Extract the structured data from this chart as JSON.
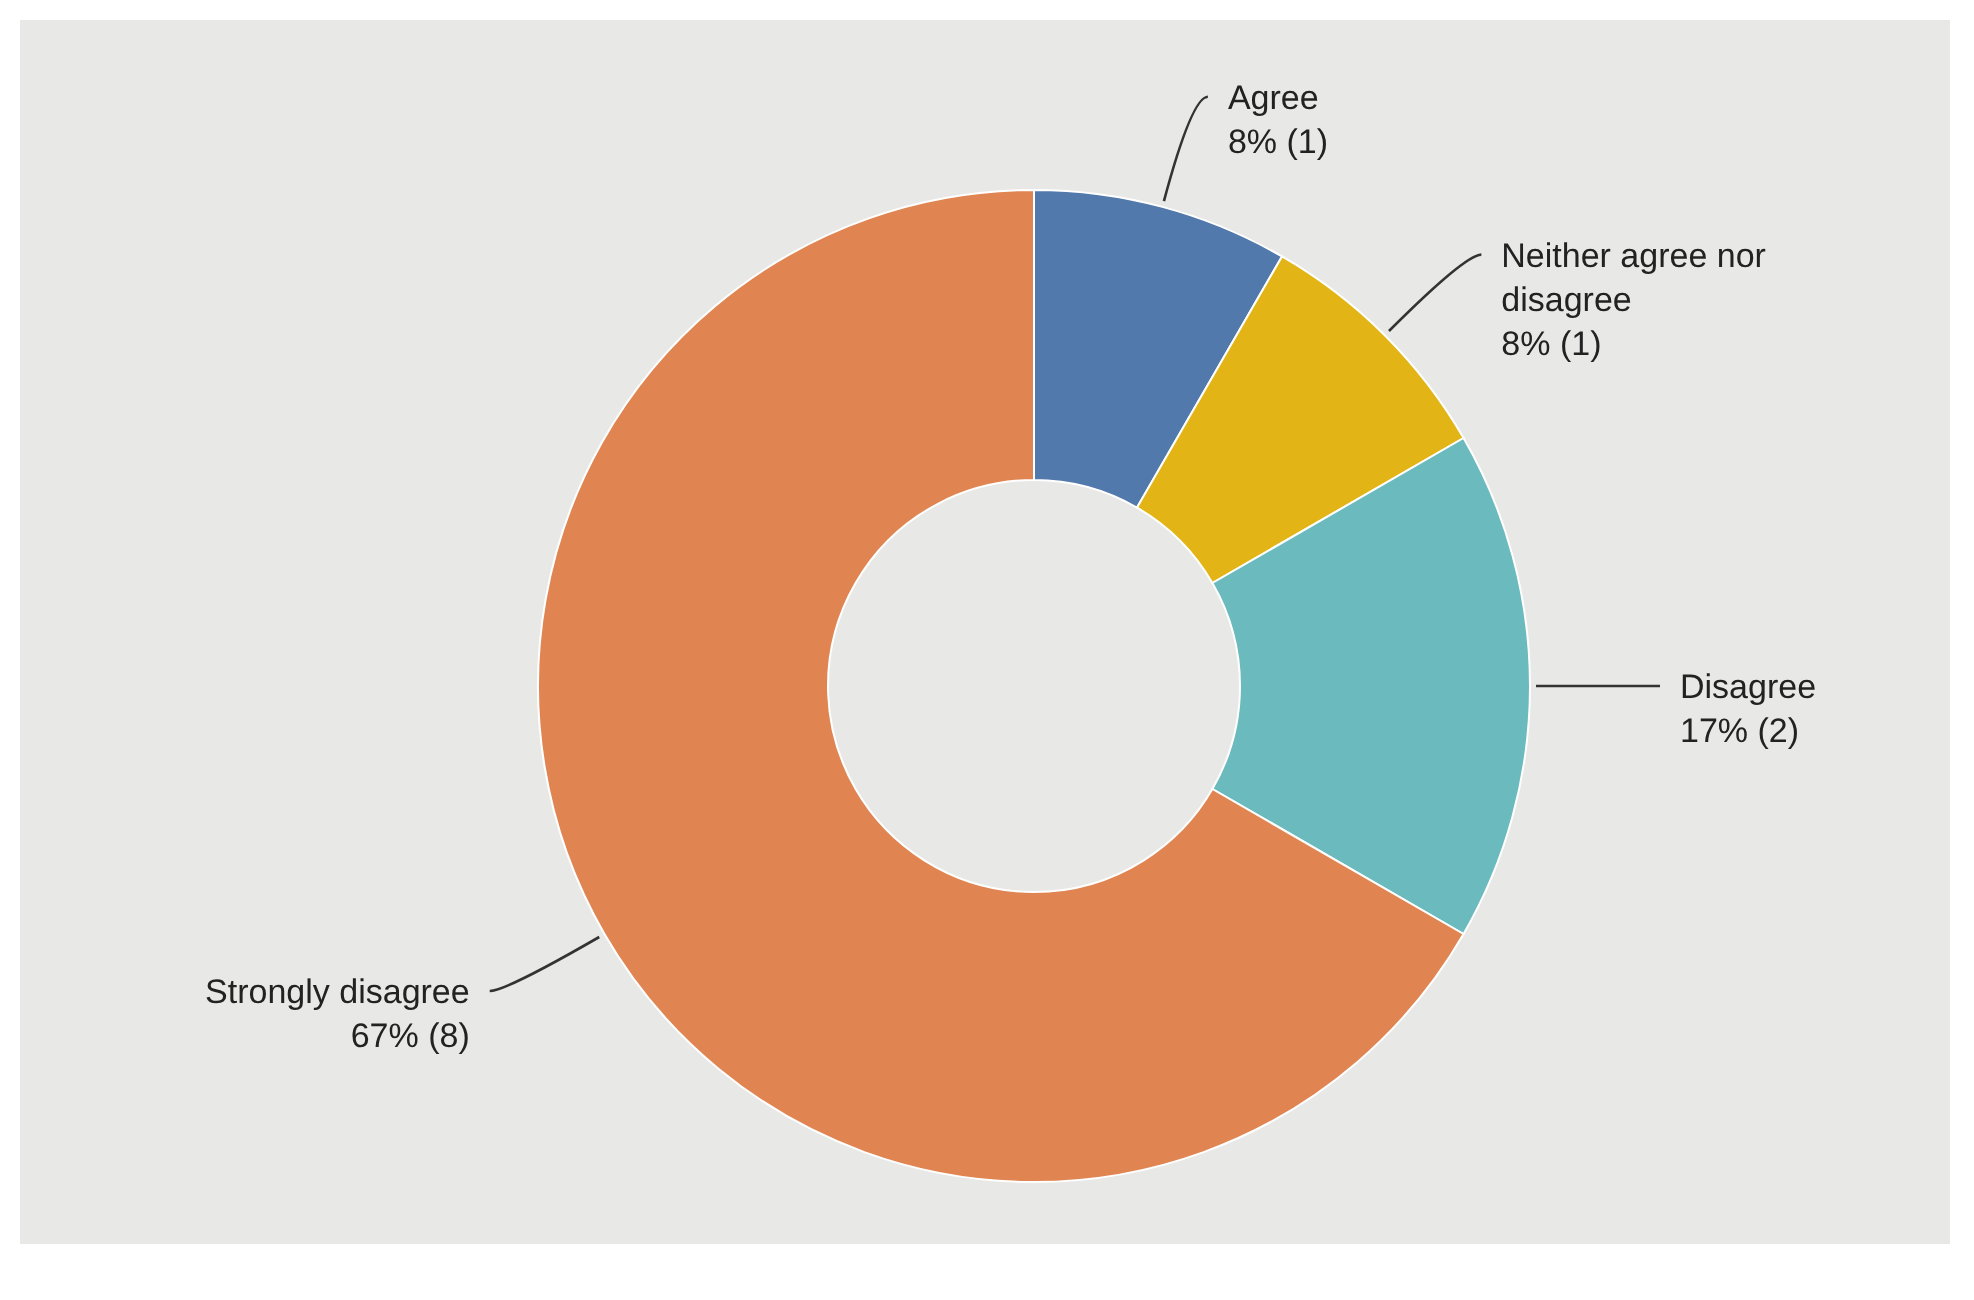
{
  "chart_data": {
    "type": "donut",
    "categories": [
      "Agree",
      "Neither agree nor disagree",
      "Disagree",
      "Strongly disagree"
    ],
    "values": [
      1,
      1,
      2,
      8
    ],
    "value_labels": [
      "8% (1)",
      "8% (1)",
      "17% (2)",
      "67% (8)"
    ],
    "colors": [
      "#5279ac",
      "#e2b416",
      "#6bbbbe",
      "#e08552"
    ]
  }
}
